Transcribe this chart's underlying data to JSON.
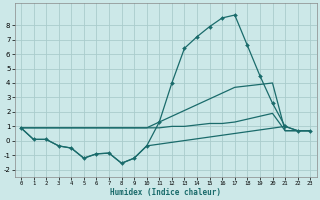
{
  "xlabel": "Humidex (Indice chaleur)",
  "bg_color": "#cce8e8",
  "grid_color": "#aacccc",
  "line_color": "#1a6b6b",
  "xlim": [
    -0.5,
    23.5
  ],
  "ylim": [
    -2.5,
    9.5
  ],
  "xticks": [
    0,
    1,
    2,
    3,
    4,
    5,
    6,
    7,
    8,
    9,
    10,
    11,
    12,
    13,
    14,
    15,
    16,
    17,
    18,
    19,
    20,
    21,
    22,
    23
  ],
  "yticks": [
    -2,
    -1,
    0,
    1,
    2,
    3,
    4,
    5,
    6,
    7,
    8
  ],
  "series1_x": [
    0,
    1,
    2,
    3,
    4,
    5,
    6,
    7,
    8,
    9,
    10,
    11,
    12,
    13,
    14,
    15,
    16,
    17,
    18,
    19,
    20,
    21,
    22,
    23
  ],
  "series1_y": [
    0.9,
    0.1,
    0.1,
    -0.35,
    -0.5,
    -1.2,
    -0.9,
    -0.85,
    -1.55,
    -1.2,
    -0.35,
    1.3,
    4.0,
    6.4,
    7.2,
    7.9,
    8.5,
    8.7,
    6.6,
    4.5,
    2.6,
    1.0,
    0.7,
    0.7
  ],
  "series2_x": [
    0,
    1,
    2,
    3,
    4,
    5,
    6,
    7,
    8,
    9,
    10,
    21,
    22,
    23
  ],
  "series2_y": [
    0.9,
    0.1,
    0.1,
    -0.35,
    -0.5,
    -1.2,
    -0.9,
    -0.85,
    -1.55,
    -1.2,
    -0.35,
    1.0,
    0.7,
    0.7
  ],
  "series3_x": [
    0,
    10,
    11,
    12,
    13,
    14,
    15,
    16,
    17,
    18,
    19,
    20,
    21,
    22,
    23
  ],
  "series3_y": [
    0.9,
    0.9,
    1.3,
    1.7,
    2.1,
    2.5,
    2.9,
    3.3,
    3.7,
    3.8,
    3.9,
    4.0,
    0.7,
    0.7,
    0.7
  ],
  "series4_x": [
    0,
    10,
    11,
    12,
    13,
    14,
    15,
    16,
    17,
    18,
    19,
    20,
    21,
    22,
    23
  ],
  "series4_y": [
    0.9,
    0.9,
    0.9,
    1.0,
    1.0,
    1.1,
    1.2,
    1.2,
    1.3,
    1.5,
    1.7,
    1.9,
    0.7,
    0.7,
    0.7
  ]
}
